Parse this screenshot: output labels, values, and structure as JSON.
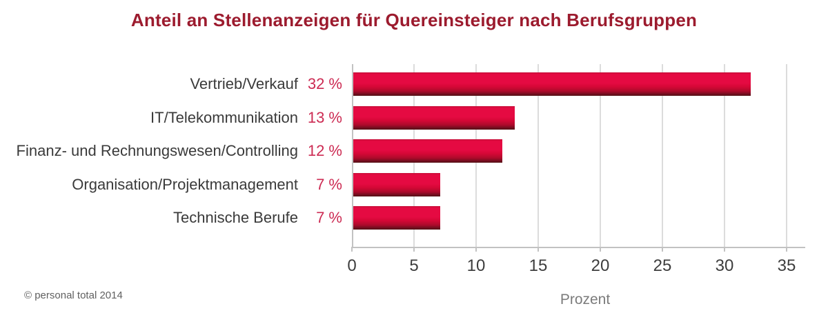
{
  "title": "Anteil an Stellenanzeigen für Quereinsteiger nach Berufsgruppen",
  "footer": {
    "copyright": "© personal total 2014"
  },
  "colors": {
    "title": "#9c1b2e",
    "label": "#3a3a3a",
    "value": "#cc2a52",
    "tick": "#3d3d3d",
    "muted": "#7b7b7b",
    "footer_text": "#606060",
    "gridline": "#dcdcdc",
    "axis": "#c2c2c2",
    "bar_top_edge": "#c51038",
    "bar_bright": "#e50a42",
    "bar_mid": "#d40836",
    "bar_dark": "#ad0a2b",
    "bar_darker": "#720e1f",
    "bar_bottom_edge": "#531114"
  },
  "chart_data": {
    "type": "bar",
    "orientation": "horizontal",
    "title": "Anteil an Stellenanzeigen für Quereinsteiger nach Berufsgruppen",
    "categories": [
      "Vertrieb/Verkauf",
      "IT/Telekommunikation",
      "Finanz- und Rechnungswesen/Controlling",
      "Organisation/Projektmanagement",
      "Technische Berufe"
    ],
    "values": [
      32,
      13,
      12,
      7,
      7
    ],
    "value_labels": [
      "32 %",
      "13 %",
      "12 %",
      "7 %",
      "7 %"
    ],
    "xlabel": "Prozent",
    "ylabel": "",
    "xlim": [
      0,
      35
    ],
    "xticks": [
      0,
      5,
      10,
      15,
      20,
      25,
      30,
      35
    ],
    "grid": "vertical-only",
    "legend": "none",
    "bar_color": "red-gradient"
  }
}
